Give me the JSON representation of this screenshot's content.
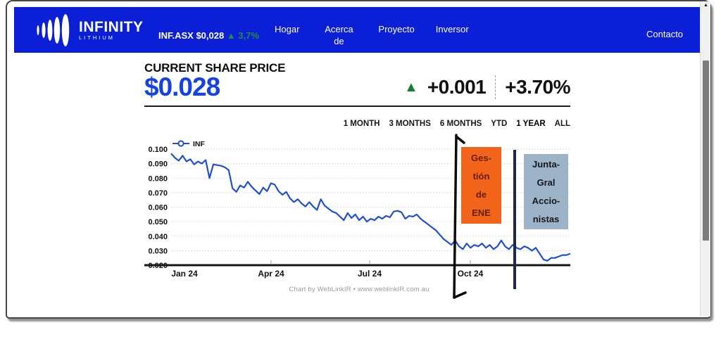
{
  "window": {
    "scroll_up_arrow": "▲"
  },
  "header": {
    "bg_color": "#0a1fd6",
    "logo": {
      "title": "INFINITY",
      "subtitle": "LITHIUM"
    },
    "ticker": {
      "symbol_price": "INF.ASX $0,028",
      "arrow": "▲",
      "change_pct": "3,7%",
      "up_color": "#1e8e3e"
    },
    "nav": [
      {
        "label": "Hogar"
      },
      {
        "label": "Acerca de"
      },
      {
        "label": "Proyecto"
      },
      {
        "label": "Inversor"
      }
    ],
    "contact_label": "Contacto"
  },
  "price_section": {
    "heading": "CURRENT SHARE PRICE",
    "price": "$0.028",
    "price_color": "#1643df",
    "arrow": "▲",
    "arrow_color": "#1b7d33",
    "change_abs": "+0.001",
    "change_pct": "+3.70%"
  },
  "range_tabs": {
    "items": [
      {
        "label": "1 MONTH",
        "active": false
      },
      {
        "label": "3 MONTHS",
        "active": false
      },
      {
        "label": "6 MONTHS",
        "active": false
      },
      {
        "label": "YTD",
        "active": false
      },
      {
        "label": "1 YEAR",
        "active": true
      },
      {
        "label": "ALL",
        "active": false
      }
    ]
  },
  "chart_data": {
    "type": "line",
    "legend": "INF",
    "legend_position": "top-left",
    "grid": "horizontal-dotted",
    "ylim": [
      0.02,
      0.1
    ],
    "y_ticks": [
      "0.100",
      "0.090",
      "0.080",
      "0.070",
      "0.060",
      "0.050",
      "0.040",
      "0.030",
      "0.020"
    ],
    "x_labels": [
      "Jan 24",
      "Apr 24",
      "Jul 24",
      "Oct 24"
    ],
    "caption": "Chart by WebLinkIR • www.weblinkIR.com.au",
    "series": [
      {
        "name": "INF",
        "color": "#2150cf",
        "values": [
          0.097,
          0.094,
          0.092,
          0.0955,
          0.0915,
          0.093,
          0.0895,
          0.0915,
          0.09,
          0.0925,
          0.08,
          0.0895,
          0.089,
          0.0885,
          0.0875,
          0.0855,
          0.073,
          0.0705,
          0.075,
          0.0735,
          0.0775,
          0.074,
          0.0715,
          0.069,
          0.0735,
          0.071,
          0.0765,
          0.0755,
          0.071,
          0.0685,
          0.0705,
          0.066,
          0.0635,
          0.0655,
          0.0625,
          0.0605,
          0.0635,
          0.0605,
          0.058,
          0.0655,
          0.061,
          0.059,
          0.057,
          0.056,
          0.0535,
          0.051,
          0.056,
          0.0525,
          0.055,
          0.051,
          0.0535,
          0.05,
          0.052,
          0.051,
          0.0535,
          0.052,
          0.054,
          0.053,
          0.057,
          0.0575,
          0.0565,
          0.052,
          0.054,
          0.0535,
          0.055,
          0.052,
          0.05,
          0.048,
          0.046,
          0.044,
          0.041,
          0.038,
          0.036,
          0.034,
          0.037,
          0.033,
          0.031,
          0.035,
          0.032,
          0.034,
          0.033,
          0.035,
          0.032,
          0.034,
          0.031,
          0.033,
          0.037,
          0.033,
          0.031,
          0.034,
          0.032,
          0.031,
          0.033,
          0.032,
          0.03,
          0.032,
          0.028,
          0.024,
          0.023,
          0.025,
          0.025,
          0.026,
          0.027,
          0.027,
          0.028
        ]
      }
    ]
  },
  "annotations": {
    "event1": {
      "lines": [
        "Ges-",
        "tión",
        "de",
        "ENE"
      ],
      "bg": "#f26419",
      "line_color": "#0c0c0c"
    },
    "event2": {
      "lines": [
        "Junta-",
        "Gral",
        "Accio-",
        "nistas"
      ],
      "bg": "#9db3c7",
      "line_color": "#1b2a4a"
    }
  }
}
